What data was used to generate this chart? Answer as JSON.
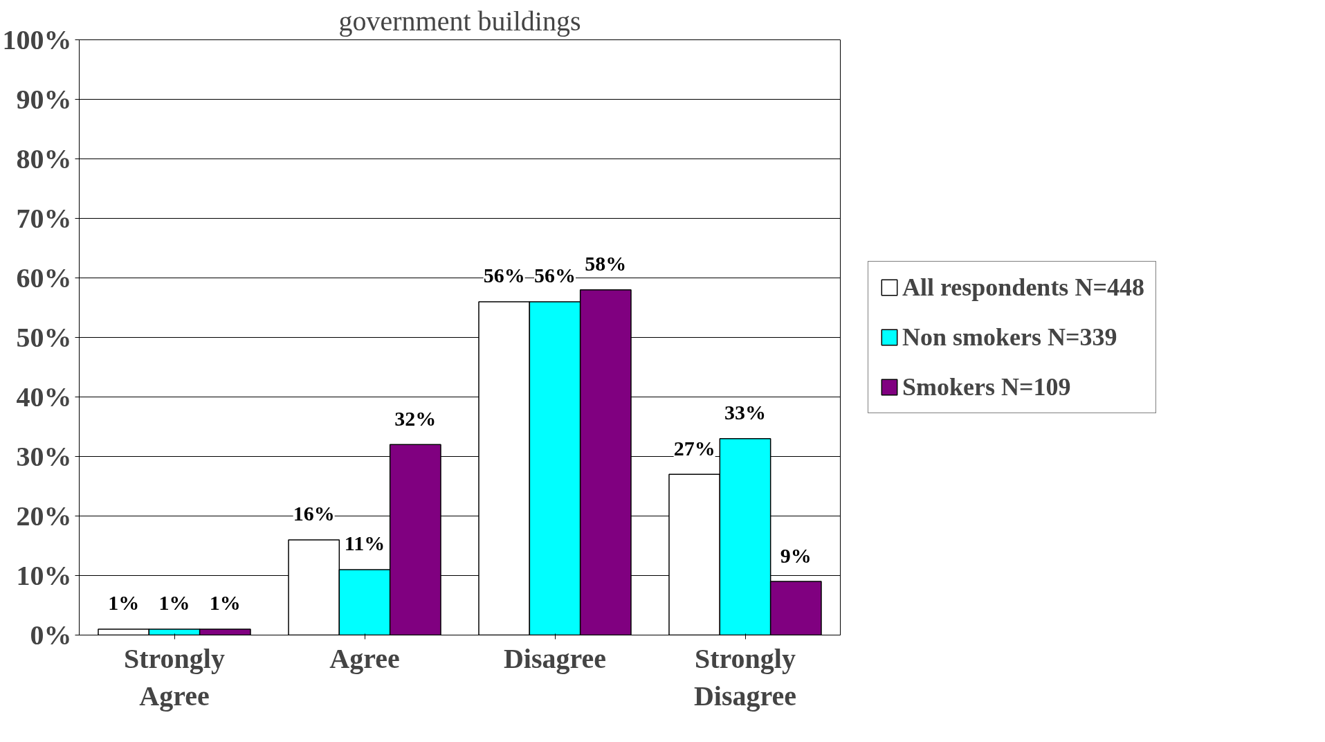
{
  "chart_data": {
    "type": "bar",
    "title": "government buildings",
    "categories": [
      "Strongly Agree",
      "Agree",
      "Disagree",
      "Strongly Disagree"
    ],
    "series": [
      {
        "name": "All respondents N=448",
        "color": "#ffffff",
        "values": [
          1,
          16,
          56,
          27
        ],
        "value_labels": [
          "1%",
          "16%",
          "56%",
          "27%"
        ]
      },
      {
        "name": "Non smokers N=339",
        "color": "#00ffff",
        "values": [
          1,
          11,
          56,
          33
        ],
        "value_labels": [
          "1%",
          "11%",
          "56%",
          "33%"
        ]
      },
      {
        "name": "Smokers N=109",
        "color": "#800080",
        "values": [
          1,
          32,
          58,
          9
        ],
        "value_labels": [
          "1%",
          "32%",
          "58%",
          "9%"
        ]
      }
    ],
    "ylim": [
      0,
      100
    ],
    "yticks": [
      {
        "value": 0,
        "label": "0%"
      },
      {
        "value": 10,
        "label": "10%"
      },
      {
        "value": 20,
        "label": "20%"
      },
      {
        "value": 30,
        "label": "30%"
      },
      {
        "value": 40,
        "label": "40%"
      },
      {
        "value": 50,
        "label": "50%"
      },
      {
        "value": 60,
        "label": "60%"
      },
      {
        "value": 70,
        "label": "70%"
      },
      {
        "value": 80,
        "label": "80%"
      },
      {
        "value": 90,
        "label": "90%"
      },
      {
        "value": 100,
        "label": "100%"
      }
    ],
    "grid": "y",
    "legend": "right"
  }
}
